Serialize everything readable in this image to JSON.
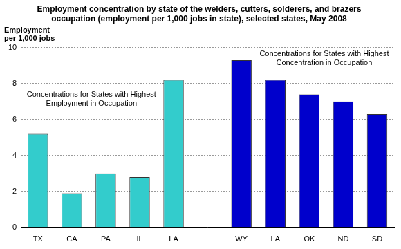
{
  "chart_data": {
    "type": "bar",
    "title": "Employment concentration by state of the welders, cutters, solderers, and brazers occupation (employment per 1,000 jobs in state), selected states, May 2008",
    "ylabel": "Employment per 1,000 jobs",
    "annotations": [
      "Concentrations for States with Highest Employment in Occupation",
      "Concentrations for States with Highest Concentration in Occupation"
    ],
    "categories": [
      "TX",
      "CA",
      "PA",
      "IL",
      "LA",
      null,
      "WY",
      "LA",
      "OK",
      "ND",
      "SD"
    ],
    "values": [
      5.2,
      1.9,
      3.0,
      2.8,
      8.2,
      null,
      9.3,
      8.2,
      7.4,
      7.0,
      6.3
    ],
    "colors": [
      "#33cccc",
      "#33cccc",
      "#33cccc",
      "#33cccc",
      "#33cccc",
      null,
      "#0000cc",
      "#0000cc",
      "#0000cc",
      "#0000cc",
      "#0000cc"
    ],
    "ylim": [
      0,
      10
    ],
    "yticks": [
      0,
      2,
      4,
      6,
      8,
      10
    ],
    "grid": true
  }
}
